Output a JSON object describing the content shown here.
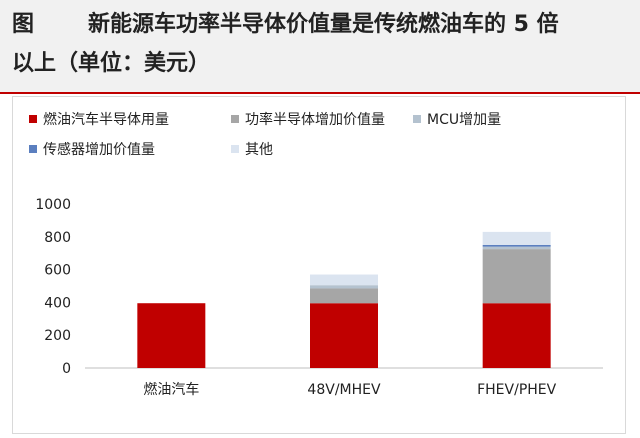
{
  "caption": {
    "label": "图",
    "line1": "新能源车功率半导体价值量是传统燃油车的 5 倍",
    "line2": "以上（单位：美元）"
  },
  "chart_data": {
    "type": "bar",
    "stacked": true,
    "categories": [
      "燃油汽车",
      "48V/MHEV",
      "FHEV/PHEV"
    ],
    "ylim": [
      0,
      1000
    ],
    "yticks": [
      0,
      200,
      400,
      600,
      800,
      1000
    ],
    "series": [
      {
        "name": "燃油汽车半导体用量",
        "color": "#c00000",
        "values": [
          395,
          395,
          395
        ]
      },
      {
        "name": "功率半导体增加价值量",
        "color": "#a6a6a6",
        "values": [
          0,
          90,
          330
        ]
      },
      {
        "name": "MCU增加量",
        "color": "#b4c2cf",
        "values": [
          0,
          20,
          15
        ]
      },
      {
        "name": "传感器增加价值量",
        "color": "#5b7fbf",
        "values": [
          0,
          0,
          10
        ]
      },
      {
        "name": "其他",
        "color": "#dbe4f0",
        "values": [
          0,
          65,
          80
        ]
      }
    ],
    "legend_position": "top"
  }
}
